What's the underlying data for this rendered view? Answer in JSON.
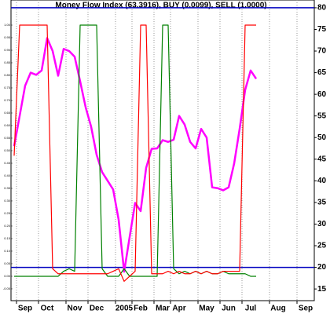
{
  "chart_data": {
    "type": "line",
    "title": "Money Flow Index (63.3916), BUY (0.0099), SELL (1.0000)",
    "categories": [
      null,
      null,
      "Sep",
      null,
      null,
      null,
      "Oct",
      null,
      null,
      null,
      null,
      "Nov",
      null,
      null,
      null,
      "Dec",
      null,
      null,
      null,
      null,
      "2005",
      null,
      null,
      "Feb",
      null,
      null,
      null,
      "Mar",
      null,
      null,
      "Apr",
      null,
      null,
      null,
      null,
      "May",
      null,
      null,
      null,
      "Jun",
      null,
      null,
      null,
      "Jul",
      null,
      null,
      null,
      null,
      "Aug",
      null,
      null,
      null,
      null,
      "Sep"
    ],
    "series": [
      {
        "color": "#ff00ff",
        "values": [
          48,
          55,
          62,
          65,
          64.5,
          65.5,
          73,
          70,
          64.3,
          70.5,
          70,
          68.7,
          63,
          57,
          52.5,
          46,
          42,
          40,
          38,
          31,
          19,
          27,
          34.9,
          33,
          43,
          47.4,
          47.5,
          49.4,
          49,
          49.5,
          55,
          53,
          49,
          47.5,
          52,
          50,
          38.5,
          38.3,
          37.8,
          38.5,
          44,
          52,
          61,
          65.5,
          63.6,
          null,
          null,
          null,
          null,
          null,
          null,
          null,
          null,
          null
        ]
      },
      {
        "color": "#008000",
        "axis": "y2",
        "values": [
          0,
          0,
          0,
          0,
          0,
          0,
          0,
          0,
          0,
          0.02,
          0.03,
          0.02,
          1,
          1,
          1,
          1,
          0.03,
          0,
          0,
          0,
          0.03,
          0,
          0,
          0,
          0,
          0,
          0,
          1,
          1,
          0.03,
          0.01,
          0.02,
          0.01,
          0.02,
          0.01,
          0.02,
          0.01,
          0.01,
          0.02,
          0.01,
          0.01,
          0.01,
          0.01,
          0,
          0,
          null,
          null,
          null,
          null,
          null,
          null,
          null,
          null,
          null
        ]
      },
      {
        "color": "#ff0000",
        "axis": "y2",
        "values": [
          0.48,
          1,
          1,
          1,
          1,
          1,
          1,
          0.03,
          0.01,
          0.01,
          0.01,
          0.01,
          0.01,
          0.01,
          0.01,
          0.01,
          0.01,
          0.01,
          0.02,
          0.03,
          -0.02,
          0,
          0.02,
          1,
          1,
          0.01,
          0.01,
          0.01,
          0.02,
          0.01,
          0.02,
          0.01,
          0.01,
          0.02,
          0.01,
          0.02,
          0.01,
          0.01,
          0.02,
          0.02,
          0.02,
          0.02,
          1,
          1,
          1,
          null,
          null,
          null,
          null,
          null,
          null,
          null,
          null,
          null
        ]
      }
    ],
    "levels": [
      80,
      20
    ],
    "level_color": "#0000c0",
    "ylim": [
      12.3,
      81.8
    ],
    "yticks": [
      15,
      20,
      25,
      30,
      35,
      40,
      45,
      50,
      55,
      60,
      65,
      70,
      75,
      80
    ],
    "y2lim": [
      -0.097,
      1.1
    ],
    "y2ticks": [
      {
        "value": 1,
        "label": "1.00"
      },
      {
        "value": 0.95,
        "label": "0.95"
      },
      {
        "value": 0.9,
        "label": "0.90"
      },
      {
        "value": 0.85,
        "label": "0.85"
      },
      {
        "value": 0.8,
        "label": "0.80"
      },
      {
        "value": 0.75,
        "label": "0.75"
      },
      {
        "value": 0.7,
        "label": "0.70"
      },
      {
        "value": 0.65,
        "label": "0.65"
      },
      {
        "value": 0.6,
        "label": "0.60"
      },
      {
        "value": 0.55,
        "label": "0.55"
      },
      {
        "value": 0.5,
        "label": "0.50"
      },
      {
        "value": 0.45,
        "label": "0.45"
      },
      {
        "value": 0.4,
        "label": "0.40"
      },
      {
        "value": 0.35,
        "label": "0.35"
      },
      {
        "value": 0.3,
        "label": "0.30"
      },
      {
        "value": 0.25,
        "label": "0.25"
      },
      {
        "value": 0.2,
        "label": "0.20"
      },
      {
        "value": 0.15,
        "label": "0.15"
      },
      {
        "value": 0.1,
        "label": "0.10"
      },
      {
        "value": 0.05,
        "label": "0.05"
      },
      {
        "value": 0,
        "label": "0.00"
      },
      {
        "value": -0.05,
        "label": "-0.05"
      }
    ],
    "xgrid": true
  }
}
